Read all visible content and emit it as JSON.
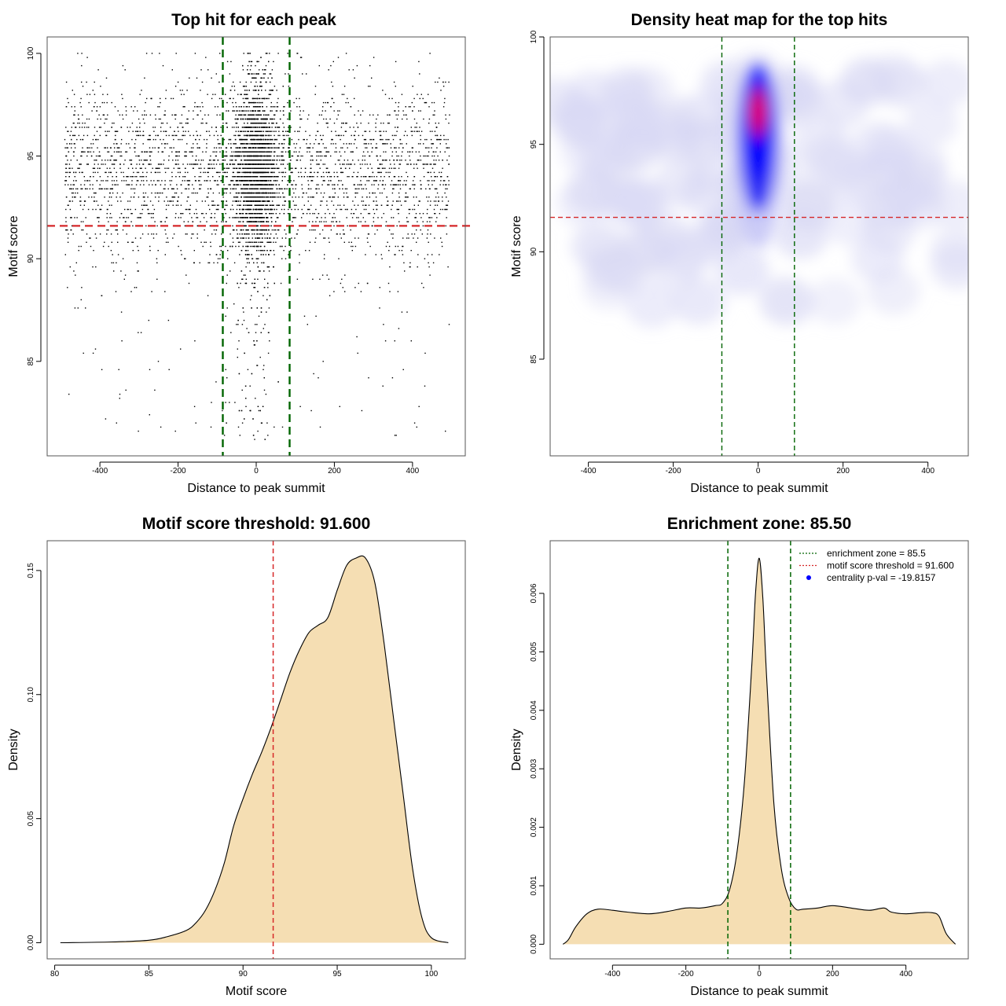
{
  "colors": {
    "threshold": "#d62728",
    "zone": "#006400",
    "fill": "#f5deb3",
    "points": "#000000",
    "hot": "#ff0000",
    "cool": "#0000ff"
  },
  "chart_data": [
    {
      "id": "scatter",
      "type": "scatter",
      "title": "Top hit for each peak",
      "xlabel": "Distance to peak summit",
      "ylabel": "Motif score",
      "xlim": [
        -535,
        535
      ],
      "ylim": [
        80.4,
        100.8
      ],
      "xticks": [
        -400,
        -200,
        0,
        200,
        400
      ],
      "yticks": [
        85,
        90,
        95,
        100
      ],
      "hline": 91.6,
      "vlines": [
        -85.5,
        85.5
      ],
      "point_model": {
        "n_background": 3200,
        "n_central": 3000,
        "x_range": [
          -490,
          495
        ],
        "central_sd": 28,
        "score_mode": 94.2,
        "score_sd": 2.2,
        "score_min": 81,
        "score_max": 100
      }
    },
    {
      "id": "heatmap",
      "type": "heatmap",
      "title": "Density heat map for the top hits",
      "xlabel": "Distance to peak summit",
      "ylabel": "Motif score",
      "xlim": [
        -490,
        495
      ],
      "ylim": [
        80.5,
        100
      ],
      "xticks": [
        -400,
        -200,
        0,
        200,
        400
      ],
      "yticks": [
        85,
        90,
        95,
        100
      ],
      "hline": 91.6,
      "vlines": [
        -85.5,
        85.5
      ],
      "peak": {
        "x": 0,
        "y": 96.5
      }
    },
    {
      "id": "score_density",
      "type": "area",
      "title": "Motif score threshold: 91.600",
      "xlabel": "Motif score",
      "ylabel": "Density",
      "xlim": [
        79.6,
        101.8
      ],
      "ylim": [
        -0.0065,
        0.162
      ],
      "xticks": [
        80,
        85,
        90,
        95,
        100
      ],
      "yticks": [
        0.0,
        0.05,
        0.1,
        0.15
      ],
      "ytick_labels": [
        "0.00",
        "0.05",
        "0.10",
        "0.15"
      ],
      "vline": 91.6,
      "x": [
        80.3,
        83,
        85,
        86,
        87,
        87.5,
        88,
        88.5,
        89,
        89.5,
        90,
        90.5,
        91,
        91.5,
        92,
        92.5,
        93,
        93.5,
        94,
        94.5,
        95,
        95.5,
        96,
        96.5,
        97,
        97.5,
        98,
        98.5,
        99,
        99.5,
        100,
        100.9
      ],
      "y": [
        0.0,
        0.0003,
        0.001,
        0.0025,
        0.005,
        0.008,
        0.013,
        0.021,
        0.032,
        0.047,
        0.058,
        0.068,
        0.077,
        0.087,
        0.098,
        0.109,
        0.118,
        0.125,
        0.128,
        0.131,
        0.142,
        0.152,
        0.155,
        0.155,
        0.145,
        0.12,
        0.09,
        0.06,
        0.03,
        0.01,
        0.002,
        0.0
      ]
    },
    {
      "id": "enrichment_density",
      "type": "area",
      "title": "Enrichment zone: 85.50",
      "xlabel": "Distance to peak summit",
      "ylabel": "Density",
      "xlim": [
        -570,
        570
      ],
      "ylim": [
        -0.00025,
        0.0069
      ],
      "xticks": [
        -400,
        -200,
        0,
        200,
        400
      ],
      "yticks": [
        0.0,
        0.001,
        0.002,
        0.003,
        0.004,
        0.005,
        0.006
      ],
      "ytick_labels": [
        "0.000",
        "0.001",
        "0.002",
        "0.003",
        "0.004",
        "0.005",
        "0.006"
      ],
      "vlines": [
        -85.5,
        85.5
      ],
      "x": [
        -535,
        -520,
        -500,
        -470,
        -440,
        -400,
        -360,
        -300,
        -250,
        -200,
        -160,
        -120,
        -100,
        -80,
        -60,
        -40,
        -20,
        -10,
        0,
        10,
        20,
        40,
        60,
        80,
        100,
        120,
        160,
        200,
        250,
        300,
        340,
        360,
        400,
        440,
        470,
        490,
        510,
        535
      ],
      "y": [
        0.0,
        8e-05,
        0.0003,
        0.00052,
        0.0006,
        0.00058,
        0.00055,
        0.00052,
        0.00056,
        0.00062,
        0.00062,
        0.00066,
        0.0007,
        0.00095,
        0.0016,
        0.0028,
        0.0048,
        0.006,
        0.0066,
        0.0059,
        0.0046,
        0.0024,
        0.0013,
        0.0008,
        0.0006,
        0.0006,
        0.00062,
        0.00066,
        0.00062,
        0.00058,
        0.00062,
        0.00055,
        0.00052,
        0.00054,
        0.00054,
        0.00048,
        0.00018,
        0.0
      ],
      "legend_position": "top-right",
      "legend": [
        {
          "label": "enrichment zone = 85.5",
          "style": "dotted",
          "color": "#006400"
        },
        {
          "label": "motif score threshold = 91.600",
          "style": "dotted",
          "color": "#d62728"
        },
        {
          "label": "centrality p-val = -19.8157",
          "style": "point",
          "color": "#0000ff"
        }
      ]
    }
  ]
}
